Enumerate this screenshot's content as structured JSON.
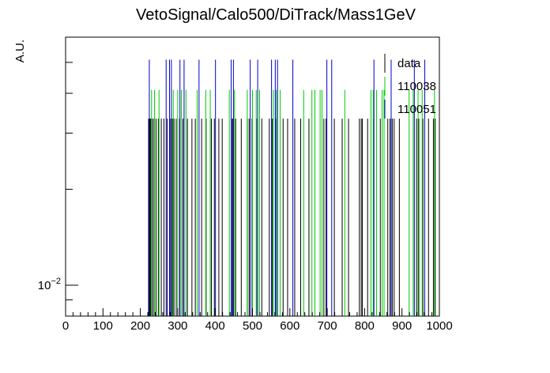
{
  "chart_data": {
    "type": "bar",
    "title": "VetoSignal/Calo500/DiTrack/Mass1GeV",
    "xlabel": "",
    "ylabel": "A.U.",
    "xlim": [
      0,
      1000
    ],
    "ylim": [
      0.008,
      0.06
    ],
    "yscale": "log",
    "grid": false,
    "legend_position": "top-right",
    "x_ticks": [
      0,
      100,
      200,
      300,
      400,
      500,
      600,
      700,
      800,
      900,
      1000
    ],
    "x_tick_labels": [
      "0",
      "100",
      "200",
      "300",
      "400",
      "500",
      "600",
      "700",
      "800",
      "900",
      "1000"
    ],
    "y_tick_labels": [
      "10^{-2}"
    ],
    "y_minor_ticks": [
      0.009,
      0.02,
      0.03,
      0.04,
      0.05
    ],
    "series": [
      {
        "name": "data",
        "color": "#000000",
        "value": 0.0333,
        "x": [
          222,
          226,
          228,
          233,
          237,
          242,
          248,
          256,
          263,
          272,
          281,
          286,
          290,
          296,
          305,
          314,
          326,
          338,
          347,
          364,
          376,
          390,
          398,
          410,
          419,
          446,
          448,
          455,
          470,
          486,
          491,
          499,
          511,
          525,
          545,
          553,
          556,
          563,
          582,
          594,
          613,
          629,
          651,
          667,
          691,
          697,
          719,
          740,
          757,
          786,
          791,
          794,
          808,
          824,
          842,
          862,
          868,
          874,
          879,
          893,
          939,
          945,
          956,
          971,
          984,
          989
        ]
      },
      {
        "name": "110038",
        "color": "#00cc00",
        "value": 0.041,
        "x": [
          230,
          238,
          250,
          288,
          300,
          310,
          322,
          352,
          375,
          387,
          438,
          452,
          486,
          500,
          510,
          519,
          556,
          564,
          574,
          637,
          659,
          667,
          681,
          686,
          747,
          817,
          823,
          832,
          847,
          852,
          919,
          930,
          943,
          954,
          987
        ]
      },
      {
        "name": "110051",
        "color": "#0000cc",
        "value": 0.051,
        "x": [
          224,
          269,
          278,
          283,
          306,
          317,
          357,
          401,
          443,
          449,
          494,
          514,
          551,
          561,
          567,
          608,
          699,
          712,
          825,
          871,
          933,
          961
        ]
      }
    ]
  }
}
